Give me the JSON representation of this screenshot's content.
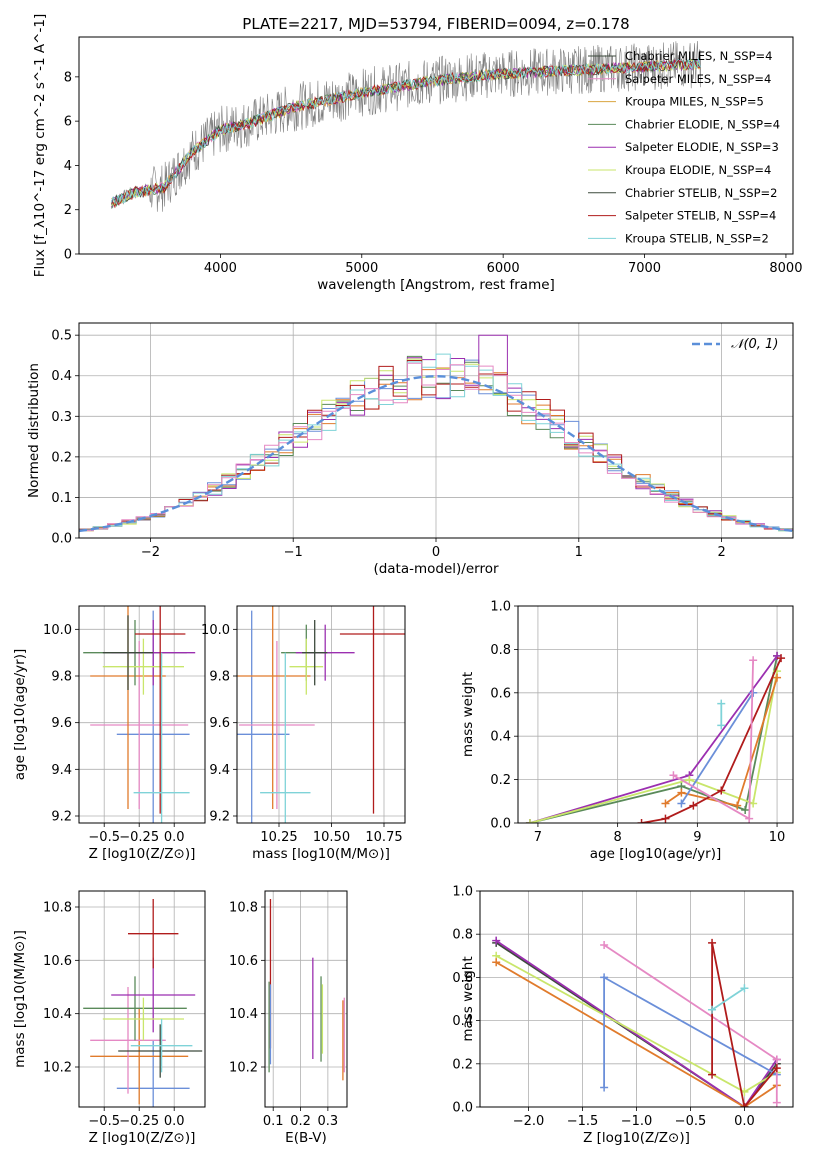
{
  "colors": {
    "observed": "#7f7f7f",
    "gaussian": "#5b8fd9",
    "grid": "#b0b0b0",
    "series": [
      "#6b8fd9",
      "#e07b2c",
      "#d9a441",
      "#5a8a5a",
      "#9b2fb0",
      "#c9e66b",
      "#3d4a3d",
      "#b01c1c",
      "#7fd3d8",
      "#e589c4"
    ]
  },
  "figure_title": "PLATE=2217, MJD=53794, FIBERID=0094, z=0.178",
  "chart_data": [
    {
      "id": "spectrum",
      "type": "line",
      "xlabel": "wavelength [Angstrom, rest frame]",
      "ylabel": "Flux [f_λ10^-17 erg cm^-2 s^-1 A^-1]",
      "xlim": [
        3000,
        8050
      ],
      "ylim": [
        0,
        9.8
      ],
      "xticks": [
        4000,
        5000,
        6000,
        7000,
        8000
      ],
      "yticks": [
        0,
        2,
        4,
        6,
        8
      ],
      "grid": false,
      "legend_position": "top-right",
      "observed_continuum": {
        "x": [
          3230,
          3400,
          3600,
          3800,
          4000,
          4200,
          4500,
          4800,
          5000,
          5300,
          5600,
          5900,
          6200,
          6500,
          6800,
          7100,
          7400
        ],
        "y": [
          2.3,
          2.8,
          3.0,
          4.6,
          5.6,
          5.9,
          6.6,
          7.0,
          7.3,
          7.6,
          7.9,
          8.1,
          8.2,
          8.3,
          8.4,
          8.5,
          8.6
        ]
      },
      "series": [
        {
          "name": "Chabrier MILES, N_SSP=4",
          "color_index": 6
        },
        {
          "name": "Salpeter MILES, N_SSP=4",
          "color_index": 9
        },
        {
          "name": "Kroupa MILES, N_SSP=5",
          "color_index": 2
        },
        {
          "name": "Chabrier ELODIE, N_SSP=4",
          "color_index": 3
        },
        {
          "name": "Salpeter ELODIE, N_SSP=3",
          "color_index": 4
        },
        {
          "name": "Kroupa ELODIE, N_SSP=4",
          "color_index": 5
        },
        {
          "name": "Chabrier STELIB, N_SSP=2",
          "color_index": 6
        },
        {
          "name": "Salpeter STELIB, N_SSP=4",
          "color_index": 7
        },
        {
          "name": "Kroupa STELIB, N_SSP=2",
          "color_index": 8
        }
      ]
    },
    {
      "id": "residuals",
      "type": "line",
      "xlabel": "(data-model)/error",
      "ylabel": "Normed distribution",
      "xlim": [
        -2.5,
        2.5
      ],
      "ylim": [
        0,
        0.53
      ],
      "xticks": [
        -2,
        -1,
        0,
        1,
        2
      ],
      "yticks": [
        0.0,
        0.1,
        0.2,
        0.3,
        0.4,
        0.5
      ],
      "grid": true,
      "legend_position": "top-right",
      "gaussian_label": "𝒩(0, 1)",
      "histogram": {
        "bin_min": -2.5,
        "bin_width": 0.1,
        "count": 50,
        "peak_bin": 0.35,
        "peak_value": 0.5
      }
    },
    {
      "id": "age-vs-z",
      "type": "scatter",
      "xlabel": "Z [log10(Z/Z⊙)]",
      "ylabel": "age  [log10(age/yr)]",
      "xlim": [
        -0.68,
        0.22
      ],
      "ylim": [
        9.17,
        10.1
      ],
      "xticks": [
        -0.5,
        -0.25,
        0.0
      ],
      "xticklabels": [
        "−0.5",
        "−0.25",
        "0.0"
      ],
      "yticks": [
        9.2,
        9.4,
        9.6,
        9.8,
        10.0
      ],
      "grid": true,
      "crosses": [
        {
          "x": -0.15,
          "xerr": 0.26,
          "y": 9.55,
          "yerr": 0.53,
          "c": 0
        },
        {
          "x": -0.25,
          "xerr": 0.35,
          "y": 9.59,
          "yerr": 0.36,
          "c": 9
        },
        {
          "x": -0.33,
          "xerr": 0.27,
          "y": 9.8,
          "yerr": 0.57,
          "c": 1
        },
        {
          "x": -0.28,
          "xerr": 0.37,
          "y": 9.9,
          "yerr": 0.14,
          "c": 3
        },
        {
          "x": -0.15,
          "xerr": 0.3,
          "y": 9.9,
          "yerr": 0.14,
          "c": 4
        },
        {
          "x": -0.22,
          "xerr": 0.29,
          "y": 9.84,
          "yerr": 0.12,
          "c": 5
        },
        {
          "x": -0.33,
          "xerr": 0.18,
          "y": 9.9,
          "yerr": 0.16,
          "c": 6
        },
        {
          "x": -0.1,
          "xerr": 0.18,
          "y": 9.98,
          "yerr": 0.77,
          "c": 7
        },
        {
          "x": -0.09,
          "xerr": 0.2,
          "y": 9.3,
          "yerr": 0.6,
          "c": 8
        }
      ]
    },
    {
      "id": "age-vs-mass",
      "type": "scatter",
      "xlabel": "mass [log10(M/M⊙)]",
      "xlim": [
        10.05,
        10.85
      ],
      "ylim": [
        9.17,
        10.1
      ],
      "xticks": [
        10.25,
        10.5,
        10.75
      ],
      "xticklabels": [
        "10.25",
        "10.50",
        "10.75"
      ],
      "yticks": [
        9.2,
        9.4,
        9.6,
        9.8,
        10.0
      ],
      "grid": true,
      "crosses": [
        {
          "x": 10.12,
          "xerr": 0.18,
          "y": 9.55,
          "yerr": 0.53,
          "c": 0
        },
        {
          "x": 10.24,
          "xerr": 0.18,
          "y": 9.59,
          "yerr": 0.36,
          "c": 9
        },
        {
          "x": 10.22,
          "xerr": 0.18,
          "y": 9.8,
          "yerr": 0.57,
          "c": 1
        },
        {
          "x": 10.38,
          "xerr": 0.12,
          "y": 9.9,
          "yerr": 0.12,
          "c": 3
        },
        {
          "x": 10.47,
          "xerr": 0.14,
          "y": 9.9,
          "yerr": 0.12,
          "c": 4
        },
        {
          "x": 10.38,
          "xerr": 0.08,
          "y": 9.84,
          "yerr": 0.12,
          "c": 5
        },
        {
          "x": 10.42,
          "xerr": 0.06,
          "y": 9.9,
          "yerr": 0.14,
          "c": 6
        },
        {
          "x": 10.7,
          "xerr": 0.16,
          "y": 9.98,
          "yerr": 0.77,
          "c": 7
        },
        {
          "x": 10.28,
          "xerr": 0.12,
          "y": 9.3,
          "yerr": 0.6,
          "c": 8
        }
      ]
    },
    {
      "id": "mass-weight-vs-age",
      "type": "line",
      "xlabel": "age  [log10(age/yr)]",
      "ylabel": "mass weight",
      "xlim": [
        6.75,
        10.2
      ],
      "ylim": [
        0,
        1.0
      ],
      "xticks": [
        7,
        8,
        9,
        10
      ],
      "yticks": [
        0.0,
        0.2,
        0.4,
        0.6,
        0.8,
        1.0
      ],
      "grid": true,
      "series": [
        {
          "c": 3,
          "x": [
            6.9,
            8.8,
            9.6,
            10.0
          ],
          "y": [
            0.0,
            0.17,
            0.06,
            0.77
          ]
        },
        {
          "c": 4,
          "x": [
            6.9,
            8.9,
            10.0
          ],
          "y": [
            0.0,
            0.22,
            0.77
          ]
        },
        {
          "c": 5,
          "x": [
            6.9,
            8.9,
            9.7,
            10.0
          ],
          "y": [
            0.0,
            0.2,
            0.09,
            0.7
          ]
        },
        {
          "c": 1,
          "x": [
            8.6,
            8.8,
            9.5,
            10.0
          ],
          "y": [
            0.09,
            0.14,
            0.08,
            0.67
          ]
        },
        {
          "c": 7,
          "x": [
            8.3,
            8.6,
            8.95,
            9.3,
            10.05
          ],
          "y": [
            0.0,
            0.02,
            0.08,
            0.15,
            0.76
          ]
        },
        {
          "c": 0,
          "x": [
            8.8,
            9.7,
            9.7
          ],
          "y": [
            0.09,
            0.6,
            0.6
          ]
        },
        {
          "c": 9,
          "x": [
            8.7,
            9.65,
            9.7
          ],
          "y": [
            0.22,
            0.02,
            0.75
          ]
        },
        {
          "c": 8,
          "x": [
            9.3,
            9.3
          ],
          "y": [
            0.45,
            0.55
          ]
        }
      ]
    },
    {
      "id": "mass-vs-z",
      "type": "scatter",
      "xlabel": "Z [log10(Z/Z⊙)]",
      "ylabel": "mass [log10(M/M⊙)]",
      "xlim": [
        -0.68,
        0.22
      ],
      "ylim": [
        10.05,
        10.86
      ],
      "xticks": [
        -0.5,
        -0.25,
        0.0
      ],
      "xticklabels": [
        "−0.5",
        "−0.25",
        "0.0"
      ],
      "yticks": [
        10.2,
        10.4,
        10.6,
        10.8
      ],
      "grid": true,
      "crosses": [
        {
          "x": -0.15,
          "xerr": 0.26,
          "y": 10.12,
          "yerr": 0.18,
          "c": 0
        },
        {
          "x": -0.25,
          "xerr": 0.35,
          "y": 10.24,
          "yerr": 0.18,
          "c": 1
        },
        {
          "x": -0.33,
          "xerr": 0.27,
          "y": 10.3,
          "yerr": 0.2,
          "c": 9
        },
        {
          "x": -0.28,
          "xerr": 0.37,
          "y": 10.42,
          "yerr": 0.12,
          "c": 3
        },
        {
          "x": -0.15,
          "xerr": 0.3,
          "y": 10.47,
          "yerr": 0.14,
          "c": 4
        },
        {
          "x": -0.22,
          "xerr": 0.29,
          "y": 10.38,
          "yerr": 0.08,
          "c": 5
        },
        {
          "x": -0.1,
          "xerr": 0.3,
          "y": 10.26,
          "yerr": 0.1,
          "c": 6
        },
        {
          "x": -0.15,
          "xerr": 0.18,
          "y": 10.7,
          "yerr": 0.13,
          "c": 7
        },
        {
          "x": -0.09,
          "xerr": 0.22,
          "y": 10.28,
          "yerr": 0.1,
          "c": 8
        }
      ]
    },
    {
      "id": "mass-vs-ebv",
      "type": "scatter",
      "xlabel": "E(B-V)",
      "xlim": [
        0.07,
        0.37
      ],
      "ylim": [
        10.05,
        10.86
      ],
      "xticks": [
        0.1,
        0.2,
        0.3
      ],
      "yticks": [
        10.2,
        10.4,
        10.6,
        10.8
      ],
      "grid": true,
      "bars": [
        {
          "x": 0.085,
          "y": 10.35,
          "yerr": 0.17,
          "c": 3
        },
        {
          "x": 0.09,
          "y": 10.55,
          "yerr": 0.28,
          "c": 7
        },
        {
          "x": 0.09,
          "y": 10.36,
          "yerr": 0.15,
          "c": 0
        },
        {
          "x": 0.245,
          "y": 10.42,
          "yerr": 0.19,
          "c": 4
        },
        {
          "x": 0.275,
          "y": 10.38,
          "yerr": 0.16,
          "c": 3
        },
        {
          "x": 0.28,
          "y": 10.38,
          "yerr": 0.13,
          "c": 5
        },
        {
          "x": 0.355,
          "y": 10.3,
          "yerr": 0.15,
          "c": 1
        },
        {
          "x": 0.36,
          "y": 10.32,
          "yerr": 0.14,
          "c": 9
        }
      ]
    },
    {
      "id": "mass-weight-vs-z",
      "type": "line",
      "xlabel": "Z [log10(Z/Z⊙)]",
      "ylabel": "mass weight",
      "xlim": [
        -2.45,
        0.45
      ],
      "ylim": [
        0,
        1.0
      ],
      "xticks": [
        -2.0,
        -1.5,
        -1.0,
        -0.5,
        0.0
      ],
      "xticklabels": [
        "−2.0",
        "−1.5",
        "−1.0",
        "−0.5",
        "0.0"
      ],
      "yticks": [
        0.0,
        0.2,
        0.4,
        0.6,
        0.8,
        1.0
      ],
      "grid": true,
      "series": [
        {
          "c": 6,
          "x": [
            -2.3,
            0.0,
            0.3
          ],
          "y": [
            0.76,
            0.0,
            0.2
          ]
        },
        {
          "c": 4,
          "x": [
            -2.3,
            0.0,
            0.3
          ],
          "y": [
            0.77,
            0.0,
            0.22
          ]
        },
        {
          "c": 5,
          "x": [
            -2.3,
            0.0,
            0.3
          ],
          "y": [
            0.7,
            0.07,
            0.16
          ]
        },
        {
          "c": 1,
          "x": [
            -2.3,
            0.0,
            0.3
          ],
          "y": [
            0.67,
            0.0,
            0.1
          ]
        },
        {
          "c": 0,
          "x": [
            -1.3,
            -1.3,
            0.3
          ],
          "y": [
            0.09,
            0.6,
            0.15
          ]
        },
        {
          "c": 9,
          "x": [
            -1.3,
            0.3,
            0.3
          ],
          "y": [
            0.75,
            0.22,
            0.02
          ]
        },
        {
          "c": 7,
          "x": [
            -0.3,
            -0.3,
            0.0,
            0.3
          ],
          "y": [
            0.15,
            0.76,
            0.0,
            0.18
          ]
        },
        {
          "c": 8,
          "x": [
            -0.3,
            0.0
          ],
          "y": [
            0.45,
            0.55
          ]
        }
      ]
    }
  ]
}
